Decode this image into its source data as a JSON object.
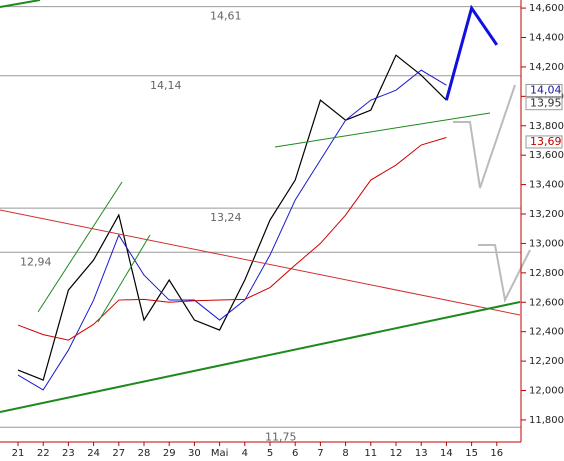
{
  "chart_data": {
    "type": "line",
    "categories": [
      "21",
      "22",
      "23",
      "24",
      "27",
      "28",
      "29",
      "30",
      "Mai",
      "4",
      "5",
      "6",
      "7",
      "8",
      "11",
      "12",
      "13",
      "14",
      "15",
      "16"
    ],
    "ylim": [
      11650,
      14655
    ],
    "yticks": [
      {
        "value": 11800,
        "label": "11,800"
      },
      {
        "value": 12000,
        "label": "12,000"
      },
      {
        "value": 12200,
        "label": "12,200"
      },
      {
        "value": 12400,
        "label": "12,400"
      },
      {
        "value": 12600,
        "label": "12,600"
      },
      {
        "value": 12800,
        "label": "12,800"
      },
      {
        "value": 13000,
        "label": "13,000"
      },
      {
        "value": 13200,
        "label": "13,200"
      },
      {
        "value": 13400,
        "label": "13,400"
      },
      {
        "value": 13600,
        "label": "13,600"
      },
      {
        "value": 13800,
        "label": "13,800"
      },
      {
        "value": 14000,
        "label": "14,000"
      },
      {
        "value": 14200,
        "label": "14,200"
      },
      {
        "value": 14400,
        "label": "14,400"
      },
      {
        "value": 14600,
        "label": "14,600"
      }
    ],
    "levels": [
      {
        "value": 14610,
        "label": "14,61"
      },
      {
        "value": 14140,
        "label": "14,14"
      },
      {
        "value": 13240,
        "label": "13,24"
      },
      {
        "value": 12940,
        "label": "12,94"
      },
      {
        "value": 11750,
        "label": "11,75"
      }
    ],
    "price_labels": [
      {
        "value": 14040,
        "label": "14,04",
        "color": "#1a1aa0"
      },
      {
        "value": 13950,
        "label": "13,95",
        "color": "#333333"
      },
      {
        "value": 13690,
        "label": "13,69",
        "color": "#c00000"
      }
    ],
    "series": [
      {
        "color": "#000000",
        "values": [
          12139,
          12071,
          12683,
          12887,
          13193,
          12479,
          12751,
          12479,
          12411,
          12751,
          13159,
          13431,
          13974,
          13838,
          13906,
          14280,
          14144,
          13974,
          null,
          null
        ]
      },
      {
        "color": "#1a1ad0",
        "values": [
          12105,
          12004,
          12275,
          12615,
          13057,
          12785,
          12615,
          12615,
          12479,
          12615,
          12921,
          13295,
          13567,
          13838,
          13974,
          14042,
          14178,
          14076,
          null,
          null
        ]
      },
      {
        "color": "#d00000",
        "values": [
          12445,
          12380,
          12343,
          12450,
          12615,
          12620,
          12600,
          12610,
          12615,
          12620,
          12700,
          12853,
          13000,
          13193,
          13431,
          13533,
          13669,
          13720,
          null,
          null
        ]
      },
      {
        "color": "#1010e0",
        "values": [
          null,
          null,
          null,
          null,
          null,
          null,
          null,
          null,
          null,
          null,
          null,
          null,
          null,
          null,
          null,
          null,
          null,
          13974,
          14600,
          14350
        ]
      }
    ]
  }
}
